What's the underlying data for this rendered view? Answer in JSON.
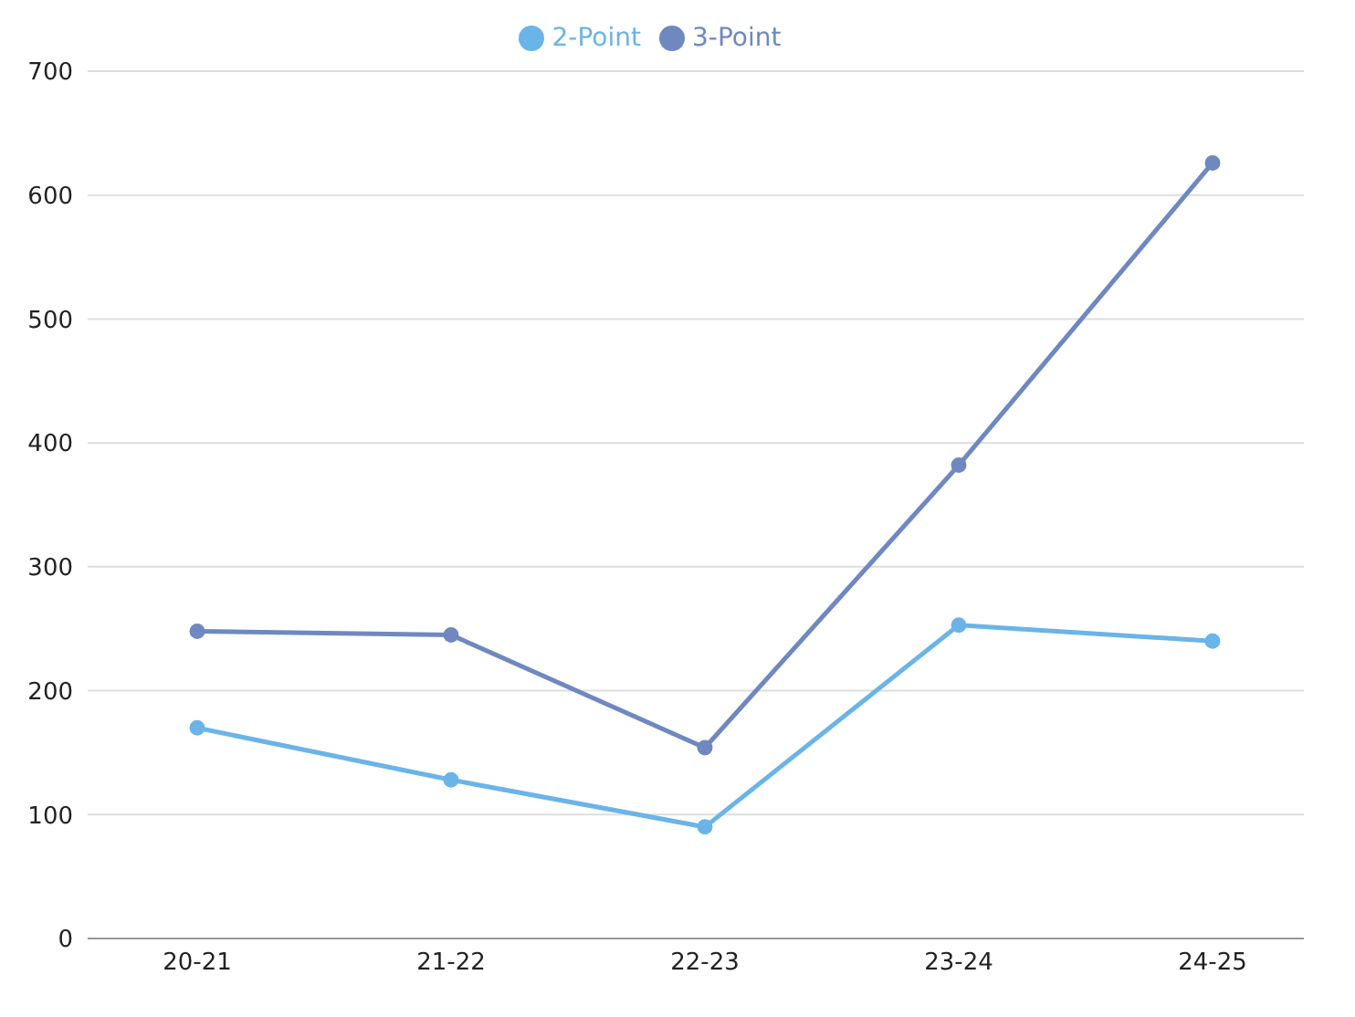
{
  "chart_data": {
    "type": "line",
    "categories": [
      "20-21",
      "21-22",
      "22-23",
      "23-24",
      "24-25"
    ],
    "series": [
      {
        "name": "2-Point",
        "color": "#6ab4e8",
        "values": [
          170,
          128,
          90,
          253,
          240
        ]
      },
      {
        "name": "3-Point",
        "color": "#6f88c0",
        "values": [
          248,
          245,
          154,
          382,
          626
        ]
      }
    ],
    "ylim": [
      0,
      700
    ],
    "yticks": [
      0,
      100,
      200,
      300,
      400,
      500,
      600,
      700
    ],
    "grid": "y",
    "legend": "top",
    "marker": "circle",
    "line_style": "solid"
  }
}
